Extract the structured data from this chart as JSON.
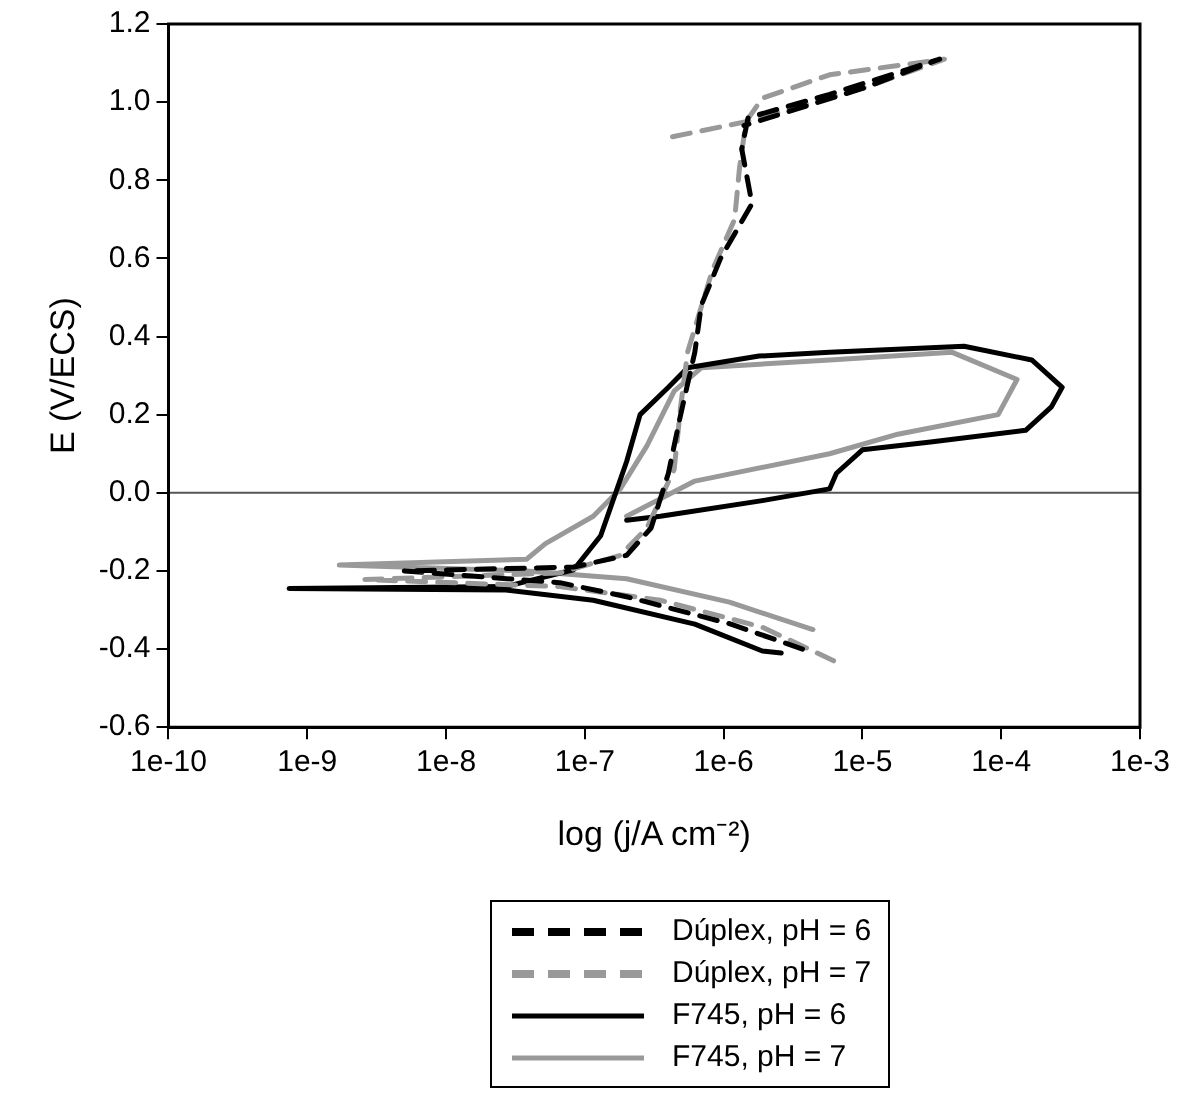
{
  "chart_data": {
    "type": "line",
    "xlabel": "log (j/A cm⁻²)",
    "ylabel": "E (V/ECS)",
    "log": "x",
    "grid": false,
    "legend": "bottom",
    "marker": "none",
    "xlim": [
      1e-10,
      0.001
    ],
    "ylim": [
      -0.6,
      1.2
    ],
    "xticks": [
      {
        "value": 1e-10,
        "label": "1e-10"
      },
      {
        "value": 1e-09,
        "label": "1e-9"
      },
      {
        "value": 1e-08,
        "label": "1e-8"
      },
      {
        "value": 1e-07,
        "label": "1e-7"
      },
      {
        "value": 1e-06,
        "label": "1e-6"
      },
      {
        "value": 1e-05,
        "label": "1e-5"
      },
      {
        "value": 0.0001,
        "label": "1e-4"
      },
      {
        "value": 0.001,
        "label": "1e-3"
      }
    ],
    "yticks": [
      -0.6,
      -0.4,
      -0.2,
      {
        "value": 0,
        "label": "0.0"
      },
      0.2,
      0.4,
      0.6,
      0.8,
      {
        "value": 1,
        "label": "1.0"
      },
      1.2
    ],
    "ref_lines": [
      {
        "axis": "y",
        "value": 0,
        "label": null,
        "color": "#555555"
      }
    ],
    "series": [
      {
        "name": "Dúplex, pH = 6",
        "color": "#000000",
        "line_style": "dashed",
        "x": [
          3.7e-06,
          1.1e-06,
          2e-07,
          6.6e-08,
          5e-09,
          8.3e-08,
          2e-07,
          3e-07,
          4e-07,
          4.9e-07,
          6.2e-07,
          6.9e-07,
          9.5e-07,
          1.6e-06,
          1.35e-06,
          1.5e-06,
          5.8e-06,
          3.6e-05,
          1e-05,
          1.4e-06
        ],
        "values": [
          -0.4,
          -0.335,
          -0.266,
          -0.23,
          -0.2,
          -0.19,
          -0.16,
          -0.09,
          0.05,
          0.2,
          0.36,
          0.48,
          0.6,
          0.74,
          0.88,
          0.96,
          1.02,
          1.11,
          1.035,
          0.94
        ]
      },
      {
        "name": "Dúplex, pH = 7",
        "color": "#999999",
        "line_style": "dashed",
        "x": [
          6.2e-06,
          1.9e-06,
          3.5e-07,
          6.6e-08,
          2.6e-09,
          6.6e-08,
          1.8e-07,
          2.8e-07,
          4.4e-07,
          4.9e-07,
          5.5e-07,
          8.3e-07,
          1.2e-06,
          1.3e-06,
          1.45e-06,
          1.9e-06,
          5.8e-06,
          3.9e-05,
          1e-05,
          1.45e-06,
          4.1e-07
        ],
        "values": [
          -0.43,
          -0.344,
          -0.275,
          -0.24,
          -0.222,
          -0.205,
          -0.16,
          -0.09,
          0.06,
          0.22,
          0.36,
          0.57,
          0.7,
          0.83,
          0.95,
          1.01,
          1.07,
          1.11,
          1.035,
          0.95,
          0.91
        ]
      },
      {
        "name": "F745, pH = 6",
        "color": "#000000",
        "line_style": "solid",
        "x": [
          2.6e-06,
          1.9e-06,
          6.2e-07,
          1.15e-07,
          2.7e-08,
          7.4e-10,
          2.7e-08,
          8.3e-08,
          1.3e-07,
          2e-07,
          2.5e-07,
          4e-07,
          5.5e-07,
          1.8e-06,
          5.8e-06,
          5.4e-05,
          0.000166,
          0.000275,
          0.00023,
          0.00015,
          3.1e-05,
          1e-05,
          6.5e-06,
          5.8e-06,
          1.9e-06,
          3.5e-07,
          2e-07
        ],
        "values": [
          -0.41,
          -0.405,
          -0.336,
          -0.275,
          -0.249,
          -0.245,
          -0.24,
          -0.197,
          -0.11,
          0.08,
          0.2,
          0.27,
          0.32,
          0.35,
          0.36,
          0.375,
          0.34,
          0.27,
          0.22,
          0.16,
          0.13,
          0.11,
          0.05,
          0.01,
          -0.02,
          -0.06,
          -0.07
        ]
      },
      {
        "name": "F745, pH = 7",
        "color": "#999999",
        "line_style": "solid",
        "x": [
          4.4e-06,
          1.1e-06,
          2e-07,
          3.8e-08,
          1.7e-09,
          3.8e-08,
          5.2e-08,
          1.15e-07,
          1.8e-07,
          2.8e-07,
          4.4e-07,
          6.9e-07,
          5.8e-06,
          4.4e-05,
          0.00013,
          9.5e-05,
          1.8e-05,
          5.8e-06,
          6.2e-07,
          2e-07
        ],
        "values": [
          -0.35,
          -0.28,
          -0.22,
          -0.2,
          -0.185,
          -0.17,
          -0.13,
          -0.06,
          0.01,
          0.12,
          0.26,
          0.32,
          0.34,
          0.36,
          0.29,
          0.2,
          0.15,
          0.1,
          0.03,
          -0.06
        ]
      }
    ]
  }
}
